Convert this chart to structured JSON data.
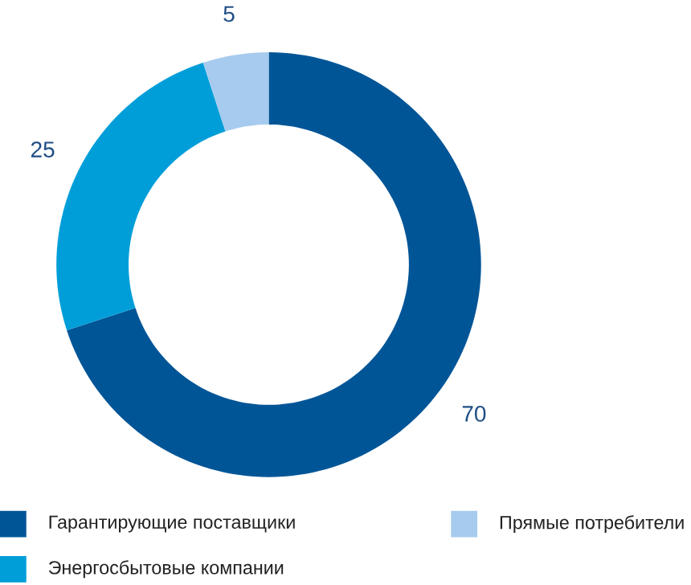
{
  "chart_data": {
    "type": "donut",
    "categories": [
      "Гарантирующие поставщики",
      "Энергосбытовые компании",
      "Прямые потребители"
    ],
    "values": [
      70,
      25,
      5
    ],
    "colors": [
      "#005597",
      "#009ed9",
      "#a6cbee"
    ],
    "data_labels": true,
    "legend": "bottom"
  }
}
